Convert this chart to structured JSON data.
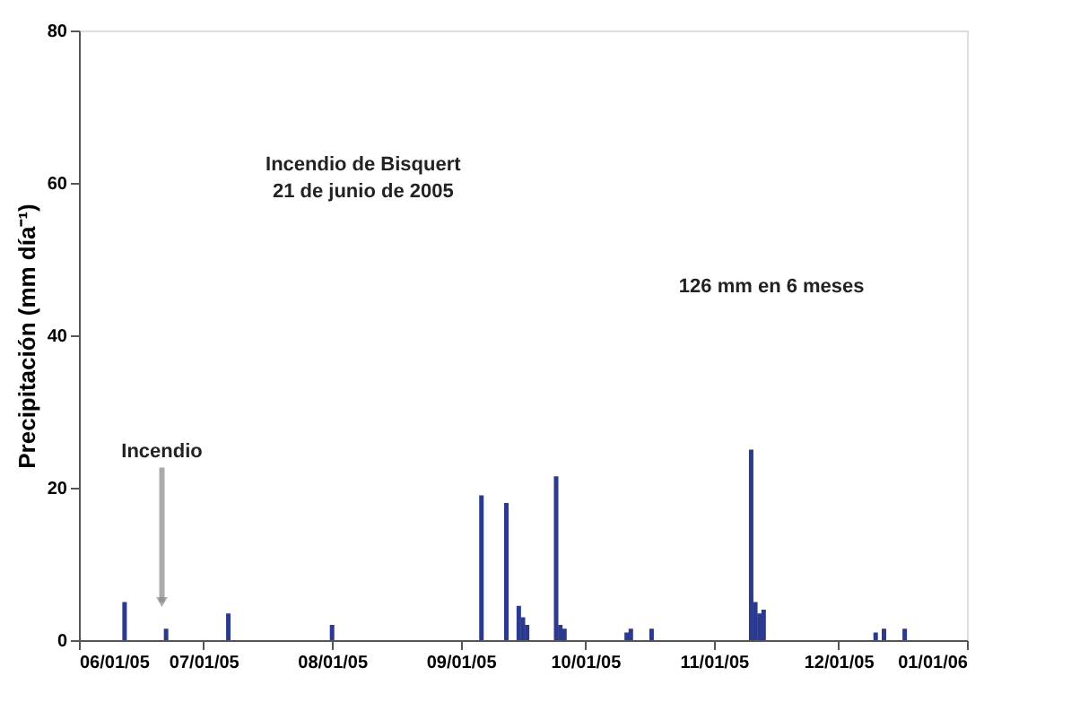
{
  "chart_data": {
    "type": "bar",
    "ylabel": "Precipitación (mm día⁻¹)",
    "x": [
      "2005-06-12",
      "2005-06-22",
      "2005-07-07",
      "2005-08-01",
      "2005-09-06",
      "2005-09-12",
      "2005-09-15",
      "2005-09-16",
      "2005-09-17",
      "2005-09-24",
      "2005-09-25",
      "2005-09-26",
      "2005-10-11",
      "2005-10-12",
      "2005-10-17",
      "2005-11-10",
      "2005-11-11",
      "2005-11-12",
      "2005-11-13",
      "2005-12-10",
      "2005-12-12",
      "2005-12-17"
    ],
    "series": [
      {
        "color": "#2b3a8f",
        "values": [
          5,
          1.5,
          3.5,
          2,
          19,
          18,
          4.5,
          3,
          2,
          21.5,
          2,
          1.5,
          1,
          1.5,
          1.5,
          25,
          5,
          3.5,
          4,
          1,
          1.5,
          1.5
        ]
      }
    ],
    "xlim": [
      "2005-06-01",
      "2006-01-01"
    ],
    "xticks": [
      {
        "value": "2005-06-01",
        "label": "06/01/05"
      },
      {
        "value": "2005-07-01",
        "label": "07/01/05"
      },
      {
        "value": "2005-08-01",
        "label": "08/01/05"
      },
      {
        "value": "2005-09-01",
        "label": "09/01/05"
      },
      {
        "value": "2005-10-01",
        "label": "10/01/05"
      },
      {
        "value": "2005-11-01",
        "label": "11/01/05"
      },
      {
        "value": "2005-12-01",
        "label": "12/01/05"
      },
      {
        "value": "2006-01-01",
        "label": "01/01/06"
      }
    ],
    "ylim": [
      0,
      80
    ],
    "yticks": [
      0,
      20,
      40,
      60,
      80
    ],
    "grid": false,
    "annotations": [
      "Incendio de Bisquert\n21 de junio de 2005",
      "126 mm en 6 meses",
      {
        "text": "Incendio",
        "x": "2005-06-21",
        "y": 5
      }
    ]
  }
}
